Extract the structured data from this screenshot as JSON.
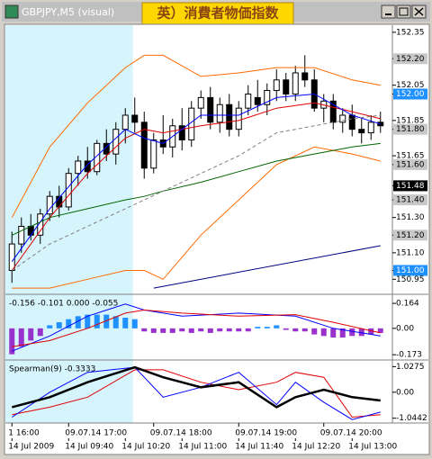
{
  "chart_data": [
    {
      "type": "candlestick",
      "title": "GBPJPY,M5 (visual)",
      "annotation": "英）消費者物価指数",
      "xlim": [
        -0.5,
        39.5
      ],
      "ylim": [
        150.88,
        152.38
      ],
      "shaded_range": [
        -0.5,
        12.8
      ],
      "open": [
        151.0,
        151.15,
        151.25,
        151.2,
        151.32,
        151.42,
        151.36,
        151.55,
        151.62,
        151.56,
        151.72,
        151.66,
        151.8,
        151.88,
        151.84,
        151.58,
        151.74,
        151.7,
        151.82,
        151.74,
        151.92,
        151.98,
        151.84,
        151.94,
        151.8,
        151.92,
        151.98,
        151.94,
        152.02,
        152.08,
        152.0,
        152.12,
        152.08,
        151.92,
        151.96,
        151.84,
        151.88,
        151.8,
        151.78,
        151.84
      ],
      "high": [
        151.22,
        151.3,
        151.32,
        151.35,
        151.45,
        151.48,
        151.58,
        151.65,
        151.7,
        151.74,
        151.8,
        151.84,
        151.92,
        151.98,
        151.9,
        151.78,
        151.88,
        151.86,
        151.92,
        151.96,
        152.02,
        152.04,
        151.98,
        152.0,
        151.96,
        152.05,
        152.08,
        152.06,
        152.14,
        152.12,
        152.16,
        152.22,
        152.14,
        152.0,
        152.0,
        151.92,
        151.94,
        151.86,
        151.88,
        151.9
      ],
      "low": [
        150.93,
        151.1,
        151.17,
        151.15,
        151.28,
        151.3,
        151.34,
        151.48,
        151.52,
        151.54,
        151.62,
        151.6,
        151.72,
        151.78,
        151.52,
        151.55,
        151.66,
        151.64,
        151.68,
        151.7,
        151.86,
        151.8,
        151.78,
        151.76,
        151.76,
        151.88,
        151.9,
        151.88,
        151.96,
        151.96,
        151.96,
        152.04,
        151.9,
        151.84,
        151.8,
        151.78,
        151.76,
        151.72,
        151.74,
        151.78
      ],
      "close": [
        151.15,
        151.25,
        151.2,
        151.32,
        151.42,
        151.36,
        151.55,
        151.62,
        151.56,
        151.72,
        151.66,
        151.8,
        151.88,
        151.84,
        151.58,
        151.74,
        151.7,
        151.82,
        151.74,
        151.92,
        151.98,
        151.84,
        151.94,
        151.8,
        151.92,
        152.0,
        151.94,
        152.02,
        152.08,
        152.0,
        152.12,
        152.08,
        151.92,
        151.96,
        151.84,
        151.88,
        151.8,
        151.78,
        151.84,
        151.82
      ],
      "series": [
        {
          "color": "#ff6a00",
          "x": [
            0,
            4,
            8,
            12,
            14,
            16,
            20,
            24,
            28,
            32,
            36,
            39
          ],
          "values": [
            151.3,
            151.7,
            151.95,
            152.15,
            152.22,
            152.22,
            152.1,
            152.12,
            152.15,
            152.15,
            152.08,
            152.05
          ]
        },
        {
          "color": "#ff6a00",
          "x": [
            0,
            4,
            8,
            12,
            14,
            16,
            20,
            24,
            28,
            32,
            36,
            39
          ],
          "values": [
            150.9,
            150.9,
            150.95,
            151.0,
            151.0,
            150.95,
            151.2,
            151.4,
            151.6,
            151.7,
            151.66,
            151.62
          ]
        },
        {
          "color": "#e00000",
          "x": [
            0,
            4,
            8,
            12,
            14,
            16,
            20,
            24,
            28,
            32,
            36,
            39
          ],
          "values": [
            151.0,
            151.3,
            151.55,
            151.75,
            151.8,
            151.78,
            151.82,
            151.85,
            151.92,
            151.95,
            151.9,
            151.86
          ]
        },
        {
          "color": "#0000ff",
          "x": [
            0,
            4,
            8,
            12,
            14,
            16,
            20,
            24,
            28,
            32,
            36,
            39
          ],
          "values": [
            151.05,
            151.35,
            151.6,
            151.8,
            151.75,
            151.72,
            151.88,
            151.88,
            151.98,
            152.0,
            151.88,
            151.83
          ]
        },
        {
          "color": "#006400",
          "x": [
            0,
            4,
            8,
            12,
            14,
            16,
            20,
            24,
            28,
            32,
            36,
            39
          ],
          "values": [
            151.2,
            151.3,
            151.35,
            151.4,
            151.42,
            151.45,
            151.5,
            151.56,
            151.62,
            151.66,
            151.7,
            151.72
          ]
        },
        {
          "color": "#808080",
          "dash": true,
          "x": [
            0,
            4,
            8,
            12,
            14,
            16,
            20,
            24,
            28,
            32,
            36,
            39
          ],
          "values": [
            151.0,
            151.15,
            151.25,
            151.35,
            151.4,
            151.45,
            151.55,
            151.65,
            151.78,
            151.82,
            151.86,
            151.88
          ]
        },
        {
          "color": "#000080",
          "x": [
            15,
            39
          ],
          "values": [
            150.9,
            151.14
          ]
        }
      ],
      "yticks": [
        152.35,
        {
          "value": 152.2,
          "label": "152.20"
        },
        152.05,
        {
          "value": 152.0,
          "label": "152.00"
        },
        151.85,
        {
          "value": 151.8,
          "label": "151.80"
        },
        151.65,
        {
          "value": 151.6,
          "label": "151.60"
        },
        151.48,
        {
          "value": 151.4,
          "label": "151.40"
        },
        {
          "value": 151.3,
          "label": "151.30"
        },
        {
          "value": 151.2,
          "label": "151.20"
        },
        {
          "value": 151.1,
          "label": "151.10"
        },
        {
          "value": 151.0,
          "label": "151.00"
        },
        150.95
      ],
      "ytick_styles": [
        "plain",
        "gray",
        "plain",
        "blue",
        "plain",
        "gray",
        "plain",
        "gray",
        "black",
        "gray",
        "plain",
        "gray",
        "plain",
        "blue",
        "plain"
      ]
    },
    {
      "type": "macd",
      "title": "-0.156 -0.101 0.000 -0.055",
      "xlim": [
        -0.5,
        39.5
      ],
      "ylim": [
        -0.19,
        0.2
      ],
      "histogram": {
        "positive_color": "#1e90ff",
        "negative_color": "#9932cc",
        "values": [
          -0.17,
          -0.12,
          -0.08,
          -0.05,
          0.02,
          0.04,
          0.06,
          0.08,
          0.09,
          0.09,
          0.09,
          0.08,
          0.07,
          0.06,
          -0.02,
          -0.03,
          -0.03,
          -0.03,
          -0.02,
          -0.03,
          -0.02,
          -0.03,
          -0.02,
          -0.02,
          -0.02,
          -0.02,
          0.01,
          0.01,
          0.02,
          -0.01,
          -0.02,
          -0.02,
          -0.04,
          -0.05,
          -0.06,
          -0.06,
          -0.05,
          -0.05,
          -0.04,
          -0.03
        ]
      },
      "series": [
        {
          "color": "#0000ff",
          "x": [
            0,
            4,
            8,
            12,
            14,
            18,
            24,
            30,
            34,
            39
          ],
          "values": [
            -0.15,
            -0.05,
            0.08,
            0.16,
            0.12,
            0.08,
            0.1,
            0.08,
            0.0,
            -0.05
          ]
        },
        {
          "color": "#e00000",
          "x": [
            0,
            4,
            8,
            12,
            14,
            18,
            24,
            30,
            34,
            39
          ],
          "values": [
            -0.12,
            -0.08,
            0.0,
            0.1,
            0.12,
            0.1,
            0.08,
            0.09,
            0.04,
            -0.03
          ]
        }
      ],
      "yticks": [
        0.164,
        {
          "value": 0,
          "label": "0.00"
        },
        -0.173
      ]
    },
    {
      "type": "spearman",
      "title": "Spearman(9) -0.3333",
      "xlim": [
        -0.5,
        39.5
      ],
      "ylim": [
        -1.2,
        1.15
      ],
      "series": [
        {
          "color": "#e00000",
          "x": [
            0,
            4,
            8,
            13,
            16,
            20,
            24,
            28,
            30,
            33,
            36,
            39
          ],
          "values": [
            -0.9,
            -0.6,
            -0.2,
            0.9,
            0.9,
            0.4,
            0.1,
            0.4,
            0.8,
            0.6,
            -1.0,
            -0.9
          ]
        },
        {
          "color": "#0000ff",
          "x": [
            0,
            4,
            8,
            13,
            16,
            20,
            24,
            28,
            30,
            33,
            36,
            39
          ],
          "values": [
            -1.0,
            0.0,
            0.8,
            1.0,
            -0.2,
            0.2,
            0.8,
            -0.5,
            0.4,
            -0.4,
            -1.1,
            -0.8
          ]
        },
        {
          "color": "#000000",
          "width": 2.5,
          "x": [
            0,
            4,
            8,
            13,
            16,
            20,
            24,
            28,
            30,
            33,
            36,
            39
          ],
          "values": [
            -0.6,
            -0.2,
            0.4,
            1.0,
            0.6,
            0.2,
            0.4,
            -0.6,
            -0.2,
            0.1,
            -0.2,
            -0.3333
          ]
        }
      ],
      "yticks": [
        1.0275,
        {
          "value": 0,
          "label": "0.00"
        },
        -1.0442
      ],
      "xticks": [
        {
          "value": 0,
          "label": "1 16:00"
        },
        {
          "value": 6,
          "label": "09.07.14 17:00"
        },
        {
          "value": 15,
          "label": "09.07.14 18:00"
        },
        {
          "value": 24,
          "label": "09.07.14 19:00"
        },
        {
          "value": 33,
          "label": "09.07.14 20:00"
        }
      ],
      "xticks2": [
        {
          "value": 0,
          "label": "14 Jul 2009"
        },
        {
          "value": 6,
          "label": "14 Jul 09:40"
        },
        {
          "value": 12,
          "label": "14 Jul 10:20"
        },
        {
          "value": 18,
          "label": "14 Jul 11:00"
        },
        {
          "value": 24,
          "label": "14 Jul 11:40"
        },
        {
          "value": 30,
          "label": "14 Jul 12:20"
        },
        {
          "value": 36,
          "label": "14 Jul 13:00"
        }
      ]
    }
  ]
}
